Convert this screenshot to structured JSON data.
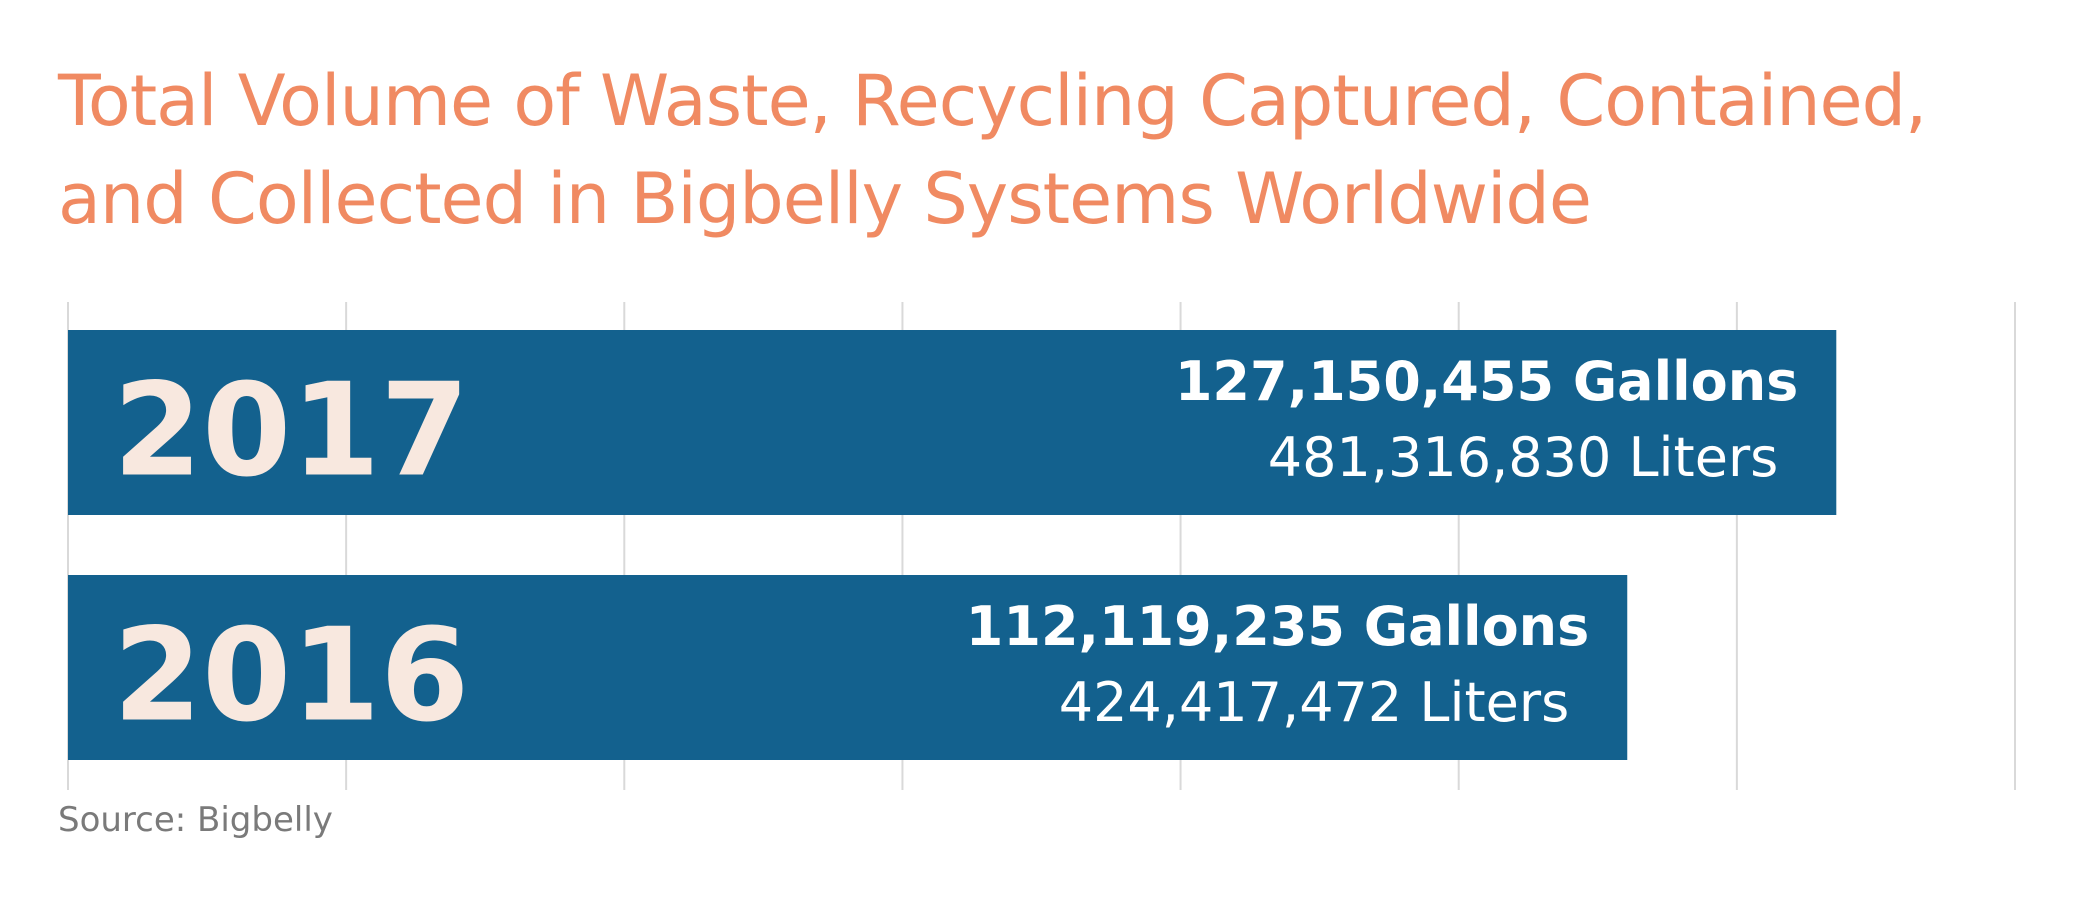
{
  "title_lines": [
    "Total Volume of Waste, Recycling Captured, Contained,",
    "and Collected in Bigbelly Systems Worldwide"
  ],
  "source": "Source: Bigbelly",
  "colors": {
    "title": "#f08a62",
    "bar": "#13618e",
    "year_label": "#f8e8df",
    "value_label": "#ffffff",
    "grid": "#d9d9d9",
    "source": "#7a7a7a"
  },
  "chart_data": {
    "type": "bar",
    "orientation": "horizontal",
    "title": "Total Volume of Waste, Recycling Captured, Contained, and Collected in Bigbelly Systems Worldwide",
    "xlabel": "",
    "ylabel": "",
    "xlim": [
      0,
      140000000
    ],
    "grid": true,
    "legend": "none",
    "categories": [
      "2017",
      "2016"
    ],
    "series": [
      {
        "values": [
          127150455,
          112119235
        ],
        "gallons_labels": [
          "127,150,455 Gallons",
          "112,119,235 Gallons"
        ],
        "liters_labels": [
          "481,316,830 Liters",
          "424,417,472  Liters"
        ]
      }
    ]
  }
}
